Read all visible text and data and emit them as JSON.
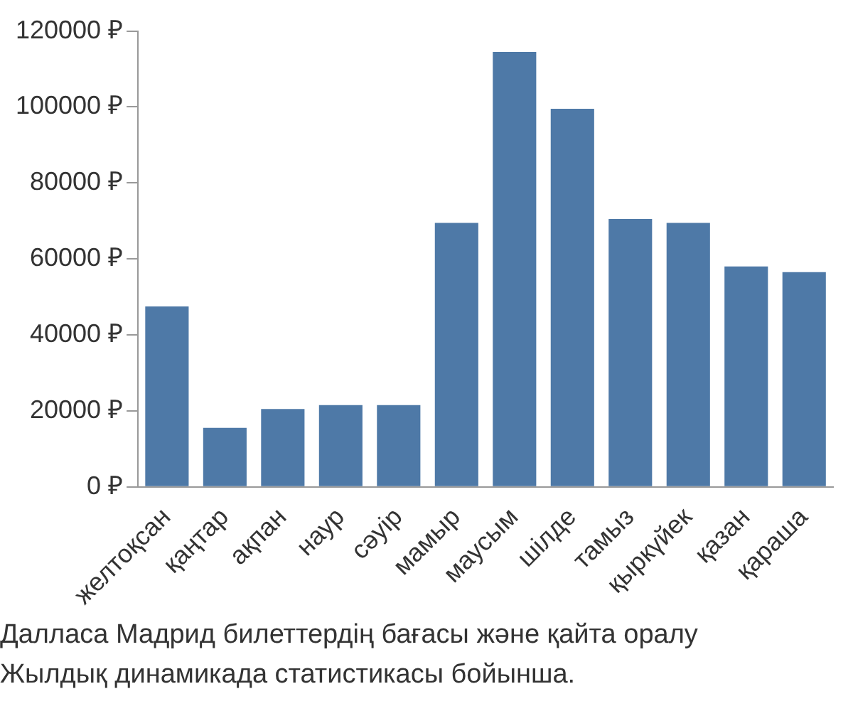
{
  "chart_data": {
    "type": "bar",
    "categories": [
      "желтоқсан",
      "қаңтар",
      "ақпан",
      "наур",
      "сәуір",
      "мамыр",
      "маусым",
      "шілде",
      "тамыз",
      "қыркүйек",
      "қазан",
      "қараша"
    ],
    "values": [
      47500,
      15500,
      20500,
      21500,
      21500,
      69500,
      114500,
      99500,
      70500,
      69500,
      58000,
      56500
    ],
    "color": "#4e79a7",
    "ylim": [
      0,
      120000
    ],
    "yticks": [
      {
        "value": 0,
        "label": "0 ₽"
      },
      {
        "value": 20000,
        "label": "20000 ₽"
      },
      {
        "value": 40000,
        "label": "40000 ₽"
      },
      {
        "value": 60000,
        "label": "60000 ₽"
      },
      {
        "value": 80000,
        "label": "80000 ₽"
      },
      {
        "value": 100000,
        "label": "100000 ₽"
      },
      {
        "value": 120000,
        "label": "120000 ₽"
      }
    ],
    "grid": false,
    "legend": false,
    "annotations": [
      "Далласа Мадрид билеттердің бағасы және қайта оралу",
      "Жылдық динамикада статистикасы бойынша."
    ]
  }
}
